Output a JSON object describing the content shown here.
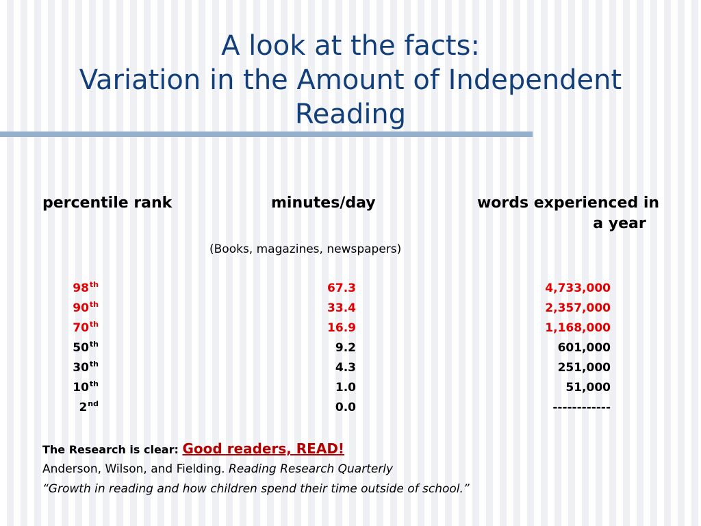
{
  "title": {
    "line1": "A look at the facts:",
    "line2": "Variation in the Amount of Independent",
    "line3": "Reading"
  },
  "table": {
    "headers": {
      "rank": "percentile rank",
      "minutes": "minutes/day",
      "words_line1": "words experienced in",
      "words_line2": "a year"
    },
    "note": "(Books, magazines, newspapers)",
    "rows": [
      {
        "rank": "98",
        "suffix": "th",
        "minutes": "67.3",
        "words": "4,733,000",
        "color": "#e30000"
      },
      {
        "rank": "90",
        "suffix": "th",
        "minutes": "33.4",
        "words": "2,357,000",
        "color": "#e30000"
      },
      {
        "rank": "70",
        "suffix": "th",
        "minutes": "16.9",
        "words": "1,168,000",
        "color": "#e30000"
      },
      {
        "rank": "50",
        "suffix": "th",
        "minutes": "9.2",
        "words": "601,000",
        "color": "#000000"
      },
      {
        "rank": "30",
        "suffix": "th",
        "minutes": "4.3",
        "words": "251,000",
        "color": "#000000"
      },
      {
        "rank": "10",
        "suffix": "th",
        "minutes": "1.0",
        "words": "51,000",
        "color": "#000000"
      },
      {
        "rank": "2",
        "suffix": "nd",
        "minutes": "0.0",
        "words": "------------",
        "color": "#000000"
      }
    ]
  },
  "footer": {
    "clear_label": "The Research is clear:",
    "clear_link": "Good readers, READ!",
    "citation_authors": "Anderson, Wilson, and Fielding.",
    "citation_journal": "Reading Research Quarterly",
    "quote": "“Growth in reading and how children spend their time outside of school.”"
  },
  "colors": {
    "title": "#123f7a",
    "rule": "#95afcd",
    "highlight": "#e30000",
    "link": "#b30000"
  }
}
